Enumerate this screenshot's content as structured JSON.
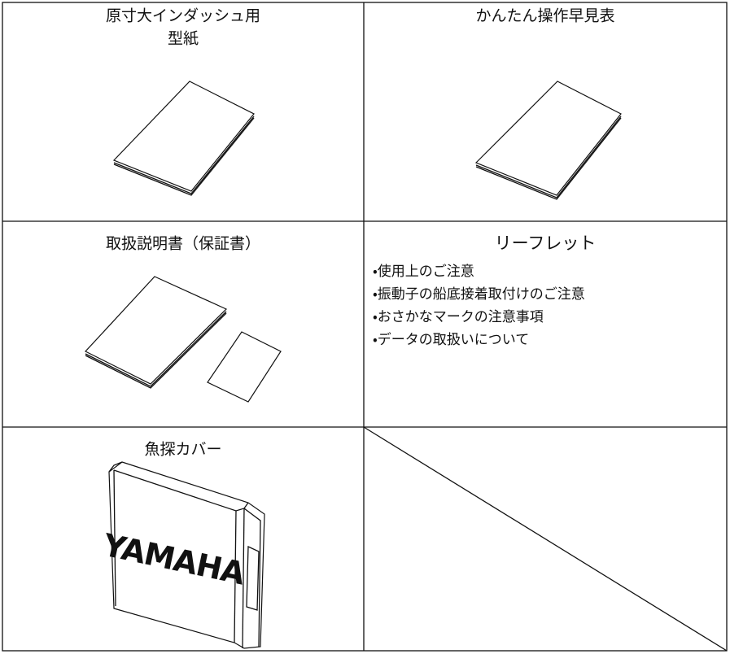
{
  "cells": [
    {
      "title_lines": [
        "原寸大インダッシュ用",
        "型紙"
      ]
    },
    {
      "title": "かんたん操作早見表"
    },
    {
      "title": "取扱説明書（保証書）"
    },
    {
      "title": "リーフレット",
      "items": [
        "・使用上のご注意",
        "・振動子の船底接着取付けのご注意",
        "・おさかなマークの注意事項",
        "・データの取扱いについて"
      ]
    },
    {
      "title": "魚探カバー",
      "logo": "YAMAHA"
    }
  ]
}
